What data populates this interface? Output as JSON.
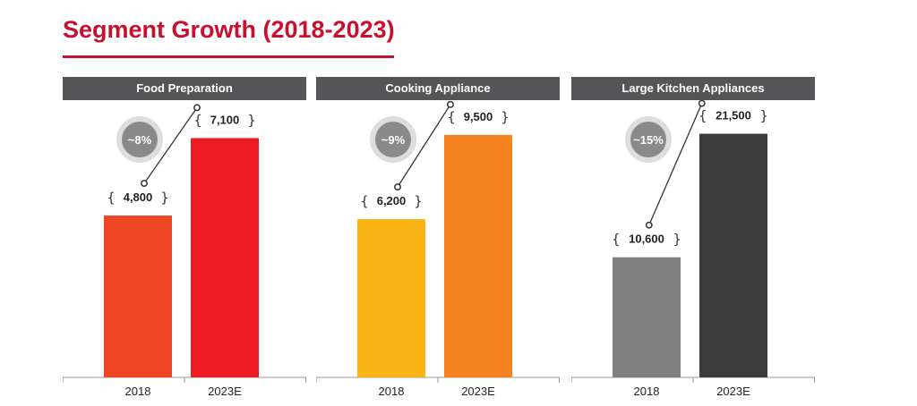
{
  "header": {
    "title": "Segment Growth (2018-2023)"
  },
  "colors": {
    "title": "#c8102e",
    "panel_header": "#555558",
    "badge": "#8a8a8a",
    "badge_ring": "#dddddd"
  },
  "chart_data": [
    {
      "type": "bar",
      "title": "Food Preparation",
      "categories": [
        "2018",
        "2023E"
      ],
      "values": [
        4800,
        7100
      ],
      "value_labels": [
        "4,800",
        "7,100"
      ],
      "growth_label": "~8%",
      "colors": [
        "#ee4524",
        "#ed1c24"
      ],
      "ylim": [
        0,
        7800
      ]
    },
    {
      "type": "bar",
      "title": "Cooking Appliance",
      "categories": [
        "2018",
        "2023E"
      ],
      "values": [
        6200,
        9500
      ],
      "value_labels": [
        "6,200",
        "9,500"
      ],
      "growth_label": "~9%",
      "colors": [
        "#fbb415",
        "#f58220"
      ],
      "ylim": [
        0,
        10300
      ]
    },
    {
      "type": "bar",
      "title": "Large Kitchen Appliances",
      "categories": [
        "2018",
        "2023E"
      ],
      "values": [
        10600,
        21500
      ],
      "value_labels": [
        "10,600",
        "21,500"
      ],
      "growth_label": "~15%",
      "colors": [
        "#808080",
        "#3c3c3c"
      ],
      "ylim": [
        0,
        23200
      ]
    }
  ]
}
